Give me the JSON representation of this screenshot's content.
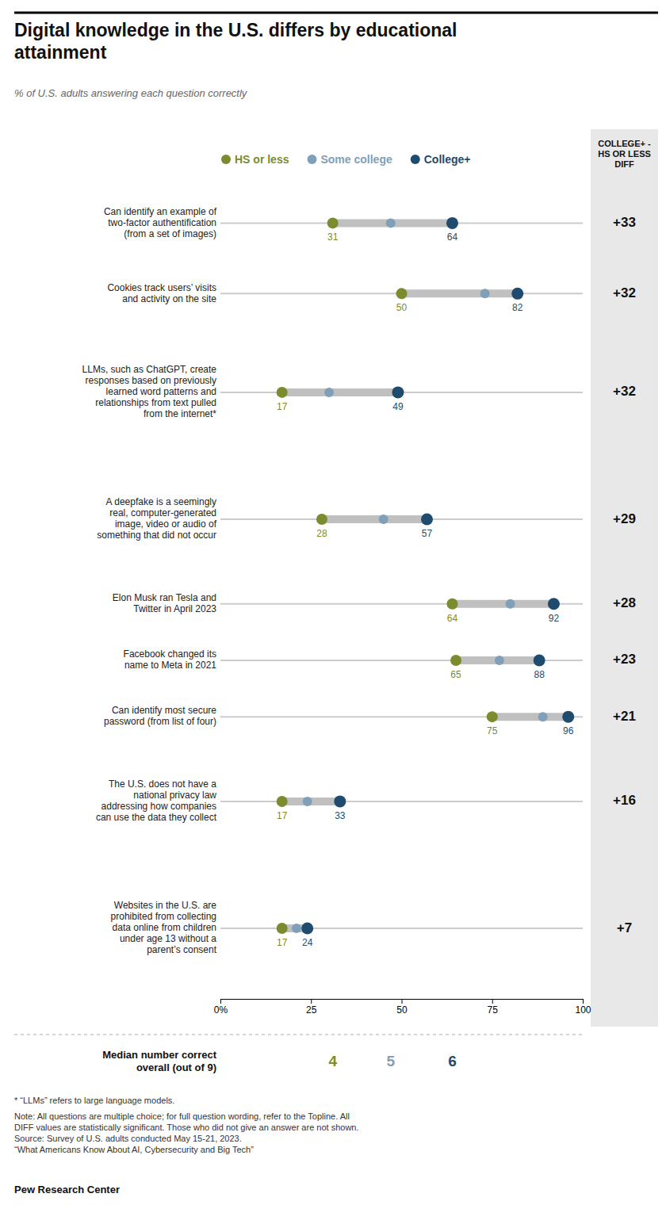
{
  "chart_data": {
    "type": "dumbbell",
    "title": "Digital knowledge in the U.S. differs by educational\nattainment",
    "subtitle": "% of U.S. adults answering each question correctly",
    "categories": [
      "Can identify an example of\ntwo-factor authentification\n(from a set of images)",
      "Cookies track users’ visits\nand activity on the site",
      "LLMs, such as ChatGPT, create\nresponses based on previously\nlearned word patterns and\nrelationships from text pulled\nfrom the internet*",
      "A deepfake is a seemingly\nreal, computer-generated\nimage, video or audio of\nsomething that did not occur",
      "Elon Musk ran Tesla and\nTwitter in April 2023",
      "Facebook changed its\nname to Meta in 2021",
      "Can identify most secure\npassword (from list of four)",
      "The U.S. does not have a\nnational privacy law\naddressing how companies\ncan use the data they collect",
      "Websites in the U.S. are\nprohibited from collecting\ndata online from children\nunder age 13 without a\nparent’s consent"
    ],
    "series": [
      {
        "name": "HS or less",
        "color": "#7a8c2e",
        "values": [
          31,
          50,
          17,
          28,
          64,
          65,
          75,
          17,
          17
        ],
        "data_labels": true,
        "median": 4
      },
      {
        "name": "Some college",
        "color": "#7fa0b8",
        "values": [
          47,
          73,
          30,
          45,
          80,
          77,
          89,
          24,
          21
        ],
        "data_labels": false,
        "median": 5
      },
      {
        "name": "College+",
        "color": "#1e4b6e",
        "values": [
          64,
          82,
          49,
          57,
          92,
          88,
          96,
          33,
          24
        ],
        "data_labels": true,
        "median": 6
      }
    ],
    "diff": {
      "title": "COLLEGE+ -\nHS OR LESS\nDIFF",
      "values": [
        33,
        32,
        32,
        29,
        28,
        23,
        21,
        16,
        7
      ],
      "value_labels": [
        "+33",
        "+32",
        "+32",
        "+29",
        "+28",
        "+23",
        "+21",
        "+16",
        "+7"
      ]
    },
    "median_label": "Median number correct\noverall (out of 9)",
    "footnotes": [
      "* “LLMs” refers to large language models.",
      "Note: All questions are multiple choice; for full question wording, refer to the Topline. All\nDIFF values are statistically significant. Those who did not give an answer are not shown.\nSource: Survey of U.S. adults conducted May 15-21, 2023.\n“What Americans Know About AI, Cybersecurity and Big Tech”"
    ],
    "source": "Pew Research Center",
    "xlim": [
      0,
      100
    ],
    "xticks": [
      {
        "value": 0,
        "label": "0%"
      },
      25,
      50,
      75,
      100
    ],
    "grid": false,
    "legend": "top"
  }
}
